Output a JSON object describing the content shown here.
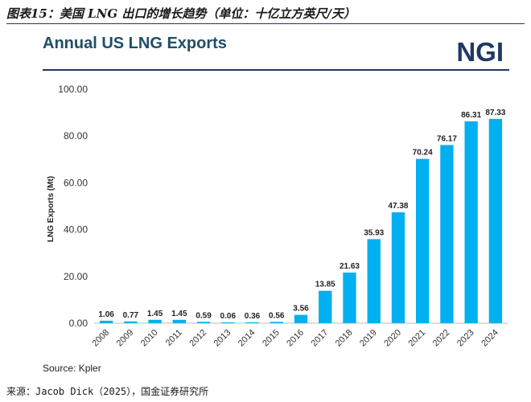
{
  "report": {
    "caption": "图表15：美国 LNG 出口的增长趋势（单位：十亿立方英尺/天）",
    "footer": "来源：Jacob Dick（2025），国金证券研究所"
  },
  "logo": {
    "text": "NGI"
  },
  "colors": {
    "bar": "#00b0f0",
    "title": "#1f4e66",
    "rule": "#1f3864",
    "axis_text": "#333333"
  },
  "chart_data": {
    "type": "bar",
    "title": "Annual US LNG Exports",
    "xlabel": "",
    "ylabel": "LNG Exports (Mt)",
    "source": "Source: Kpler",
    "categories": [
      "2008",
      "2009",
      "2010",
      "2011",
      "2012",
      "2013",
      "2014",
      "2015",
      "2016",
      "2017",
      "2018",
      "2019",
      "2020",
      "2021",
      "2022",
      "2023",
      "2024"
    ],
    "values": [
      1.06,
      0.77,
      1.45,
      1.45,
      0.59,
      0.06,
      0.36,
      0.56,
      3.56,
      13.85,
      21.63,
      35.93,
      47.38,
      70.24,
      76.17,
      86.31,
      87.33
    ],
    "value_labels": [
      "1.06",
      "0.77",
      "1.45",
      "1.45",
      "0.59",
      "0.06",
      "0.36",
      "0.56",
      "3.56",
      "13.85",
      "21.63",
      "35.93",
      "47.38",
      "70.24",
      "76.17",
      "86.31",
      "87.33"
    ],
    "ylim": [
      0,
      100
    ],
    "yticks": [
      0,
      20,
      40,
      60,
      80,
      100
    ],
    "ytick_labels": [
      "0.00",
      "20.00",
      "40.00",
      "60.00",
      "80.00",
      "100.00"
    ],
    "grid": false,
    "legend": "none"
  }
}
